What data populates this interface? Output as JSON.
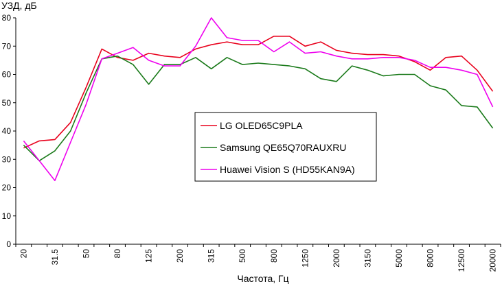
{
  "chart_data": {
    "type": "line",
    "title": "",
    "ylabel": "УЗД, дБ",
    "xlabel": "Частота, Гц",
    "ylim": [
      0,
      80
    ],
    "y_ticks": [
      0,
      10,
      20,
      30,
      40,
      50,
      60,
      70,
      80
    ],
    "grid": false,
    "legend_position": "center",
    "x": [
      20,
      25,
      31.5,
      40,
      50,
      63,
      80,
      100,
      125,
      160,
      200,
      250,
      315,
      400,
      500,
      630,
      800,
      1000,
      1250,
      1600,
      2000,
      2500,
      3150,
      4000,
      5000,
      6300,
      8000,
      10000,
      12500,
      16000,
      20000
    ],
    "x_tick_labels": [
      "20",
      "",
      "31.5",
      "",
      "50",
      "",
      "80",
      "",
      "125",
      "",
      "200",
      "",
      "315",
      "",
      "500",
      "",
      "800",
      "",
      "1250",
      "",
      "2000",
      "",
      "3150",
      "",
      "5000",
      "",
      "8000",
      "",
      "12500",
      "",
      "20000"
    ],
    "series": [
      {
        "name": "LG OLED65C9PLA",
        "color": "#e8001c",
        "values": [
          34,
          36.5,
          37,
          43,
          55.5,
          69,
          66,
          65,
          67.5,
          66.5,
          66,
          69,
          70.5,
          71.5,
          70.5,
          70.5,
          73.5,
          73.5,
          70,
          71.5,
          68.5,
          67.5,
          67,
          67,
          66.5,
          64.5,
          61.5,
          66,
          66.5,
          61.5,
          54
        ]
      },
      {
        "name": "Samsung QE65Q70RAUXRU",
        "color": "#1a7a1a",
        "values": [
          35,
          29.5,
          33,
          40,
          53.5,
          65.5,
          66.5,
          63.5,
          56.5,
          63.5,
          63.5,
          66,
          62,
          66,
          63.5,
          64,
          63.5,
          63,
          62,
          58.5,
          57.5,
          63,
          61.5,
          59.5,
          60,
          60,
          56,
          54.5,
          49,
          48.5,
          41
        ]
      },
      {
        "name": "Huawei Vision S (HD55KAN9A)",
        "color": "#ee00ee",
        "values": [
          36.5,
          29.5,
          22.5,
          36,
          49.5,
          65.5,
          67.5,
          69.5,
          65,
          63,
          63,
          70,
          80,
          73,
          72,
          72,
          68,
          71.5,
          67.5,
          68,
          66.5,
          65.5,
          65.5,
          66,
          66,
          65,
          62.5,
          62.5,
          61.5,
          60,
          48.5
        ]
      }
    ]
  }
}
